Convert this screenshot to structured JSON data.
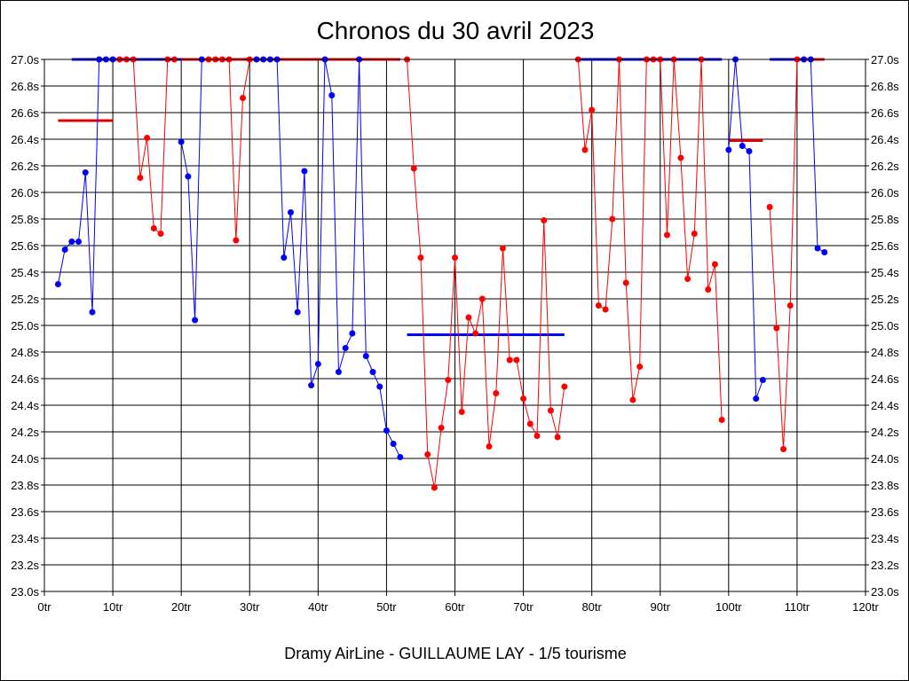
{
  "chart_data": {
    "type": "line",
    "title": "Chronos du 30 avril 2023",
    "footer": "Dramy AirLine - GUILLAUME LAY - 1/5 tourisme",
    "x_unit": "tr",
    "y_unit": "s",
    "xlim": [
      0,
      120
    ],
    "ylim": [
      23.0,
      27.0
    ],
    "x_ticks": [
      0,
      10,
      20,
      30,
      40,
      50,
      60,
      70,
      80,
      90,
      100,
      110,
      120
    ],
    "y_ticks": [
      23.0,
      23.2,
      23.4,
      23.6,
      23.8,
      24.0,
      24.2,
      24.4,
      24.6,
      24.8,
      25.0,
      25.2,
      25.4,
      25.6,
      25.8,
      26.0,
      26.2,
      26.4,
      26.6,
      26.8,
      27.0
    ],
    "grid": true,
    "series": [
      {
        "color": "#0000ff",
        "points": [
          [
            2,
            25.31
          ],
          [
            3,
            25.57
          ],
          [
            4,
            25.63
          ],
          [
            5,
            25.63
          ],
          [
            6,
            26.15
          ],
          [
            7,
            25.1
          ],
          [
            8,
            27.0
          ],
          [
            9,
            27.0
          ],
          [
            10,
            27.0
          ]
        ]
      },
      {
        "color": "#ff0000",
        "points": [
          [
            11,
            27.0
          ],
          [
            12,
            27.0
          ],
          [
            13,
            27.0
          ],
          [
            14,
            26.11
          ],
          [
            15,
            26.41
          ],
          [
            16,
            25.73
          ],
          [
            17,
            25.69
          ],
          [
            18,
            27.0
          ],
          [
            19,
            27.0
          ]
        ]
      },
      {
        "color": "#0000ff",
        "points": [
          [
            20,
            26.38
          ],
          [
            21,
            26.12
          ],
          [
            22,
            25.04
          ],
          [
            23,
            27.0
          ]
        ]
      },
      {
        "color": "#ff0000",
        "points": [
          [
            24,
            27.0
          ],
          [
            25,
            27.0
          ],
          [
            26,
            27.0
          ],
          [
            27,
            27.0
          ],
          [
            28,
            25.64
          ],
          [
            29,
            26.71
          ],
          [
            30,
            27.0
          ]
        ]
      },
      {
        "color": "#0000ff",
        "points": [
          [
            31,
            27.0
          ],
          [
            32,
            27.0
          ],
          [
            33,
            27.0
          ],
          [
            34,
            27.0
          ],
          [
            35,
            25.51
          ],
          [
            36,
            25.85
          ],
          [
            37,
            25.1
          ],
          [
            38,
            26.16
          ],
          [
            39,
            24.55
          ],
          [
            40,
            24.71
          ],
          [
            41,
            27.0
          ],
          [
            42,
            26.73
          ],
          [
            43,
            24.65
          ],
          [
            44,
            24.83
          ],
          [
            45,
            24.94
          ],
          [
            46,
            27.0
          ],
          [
            47,
            24.77
          ],
          [
            48,
            24.65
          ],
          [
            49,
            24.54
          ],
          [
            50,
            24.21
          ],
          [
            51,
            24.11
          ],
          [
            52,
            24.01
          ]
        ]
      },
      {
        "color": "#ff0000",
        "points": [
          [
            53,
            27.0
          ],
          [
            54,
            26.18
          ],
          [
            55,
            25.51
          ],
          [
            56,
            24.03
          ],
          [
            57,
            23.78
          ],
          [
            58,
            24.23
          ],
          [
            59,
            24.59
          ],
          [
            60,
            25.51
          ],
          [
            61,
            24.35
          ],
          [
            62,
            25.06
          ],
          [
            63,
            24.94
          ],
          [
            64,
            25.2
          ],
          [
            65,
            24.09
          ],
          [
            66,
            24.49
          ],
          [
            67,
            25.58
          ],
          [
            68,
            24.74
          ],
          [
            69,
            24.74
          ],
          [
            70,
            24.45
          ],
          [
            71,
            24.26
          ],
          [
            72,
            24.17
          ],
          [
            73,
            25.79
          ],
          [
            74,
            24.36
          ],
          [
            75,
            24.16
          ],
          [
            76,
            24.54
          ]
        ]
      },
      {
        "color": "#ff0000",
        "points": [
          [
            78,
            27.0
          ],
          [
            79,
            26.32
          ],
          [
            80,
            26.62
          ],
          [
            81,
            25.15
          ],
          [
            82,
            25.12
          ],
          [
            83,
            25.8
          ],
          [
            84,
            27.0
          ],
          [
            85,
            25.32
          ],
          [
            86,
            24.44
          ],
          [
            87,
            24.69
          ],
          [
            88,
            27.0
          ],
          [
            89,
            27.0
          ],
          [
            90,
            27.0
          ],
          [
            91,
            25.68
          ],
          [
            92,
            27.0
          ],
          [
            93,
            26.26
          ],
          [
            94,
            25.35
          ],
          [
            95,
            25.69
          ],
          [
            96,
            27.0
          ],
          [
            97,
            25.27
          ],
          [
            98,
            25.46
          ],
          [
            99,
            24.29
          ]
        ]
      },
      {
        "color": "#0000ff",
        "points": [
          [
            100,
            26.32
          ],
          [
            101,
            27.0
          ],
          [
            102,
            26.35
          ],
          [
            103,
            26.31
          ],
          [
            104,
            24.45
          ],
          [
            105,
            24.59
          ]
        ]
      },
      {
        "color": "#ff0000",
        "points": [
          [
            106,
            25.89
          ],
          [
            107,
            24.98
          ],
          [
            108,
            24.07
          ],
          [
            109,
            25.15
          ],
          [
            110,
            27.0
          ]
        ]
      },
      {
        "color": "#0000ff",
        "points": [
          [
            111,
            27.0
          ],
          [
            112,
            27.0
          ],
          [
            113,
            25.58
          ],
          [
            114,
            25.55
          ]
        ]
      }
    ],
    "reference_lines": [
      {
        "color": "#dd0000",
        "x_start": 2,
        "x_end": 10,
        "y": 26.54
      },
      {
        "color": "#0000ff",
        "x_start": 4,
        "x_end": 52,
        "y": 27.0
      },
      {
        "color": "#ff0000",
        "x_start": 20,
        "x_end": 52,
        "y": 27.0
      },
      {
        "color": "#0000ff",
        "x_start": 53,
        "x_end": 76,
        "y": 24.93
      },
      {
        "color": "#0000ff",
        "x_start": 78,
        "x_end": 99,
        "y": 27.0
      },
      {
        "color": "#dd0000",
        "x_start": 100,
        "x_end": 105,
        "y": 26.39
      },
      {
        "color": "#0000ff",
        "x_start": 106,
        "x_end": 112,
        "y": 27.0
      },
      {
        "color": "#ff0000",
        "x_start": 111,
        "x_end": 114,
        "y": 27.0
      }
    ]
  }
}
